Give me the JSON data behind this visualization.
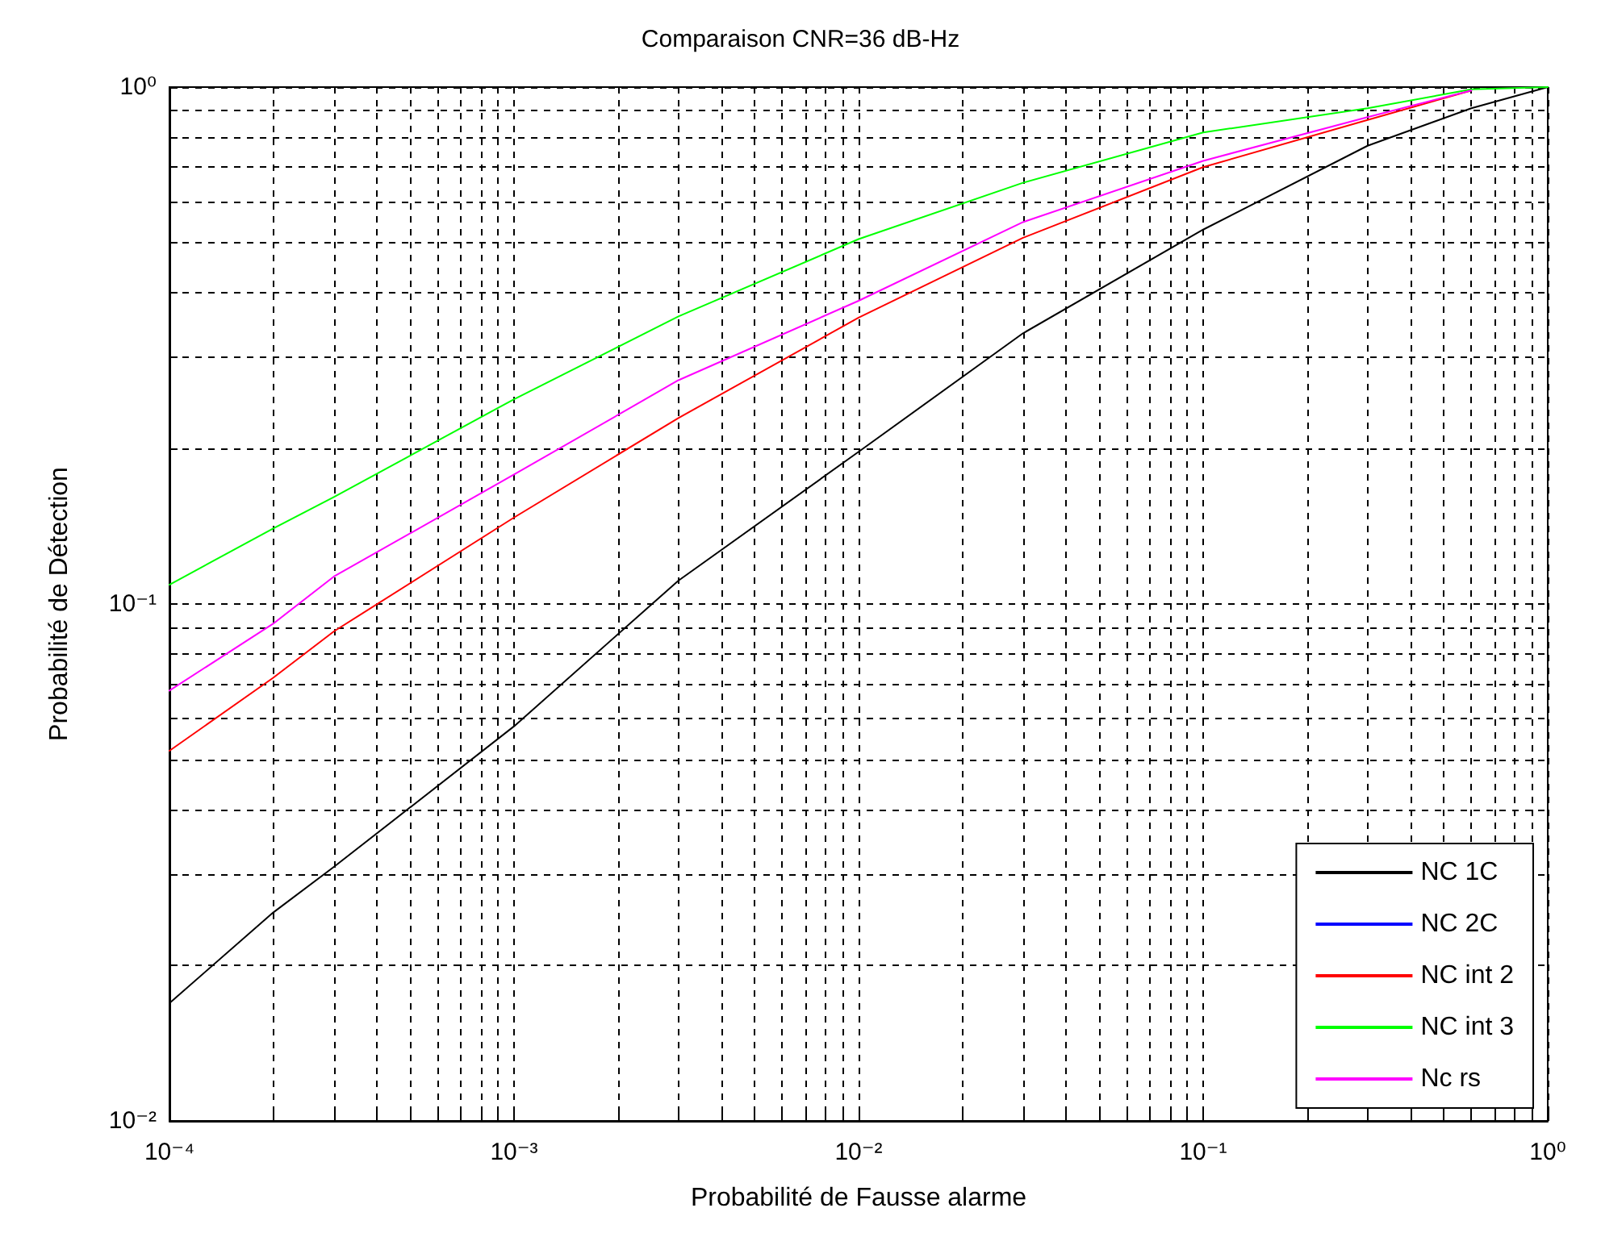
{
  "chart_data": {
    "type": "line",
    "title": "Comparaison CNR=36 dB-Hz",
    "xlabel": "Probabilité de Fausse alarme",
    "ylabel": "Probabilité de Détection",
    "x": [
      0.0001,
      0.0002,
      0.0003,
      0.001,
      0.003,
      0.01,
      0.03,
      0.1,
      0.3,
      0.6,
      1
    ],
    "series": [
      {
        "name": "NC 1C",
        "color": "#000000",
        "values": [
          0.0169,
          0.0253,
          0.031,
          0.058,
          0.111,
          0.197,
          0.334,
          0.53,
          0.77,
          0.91,
          1
        ]
      },
      {
        "name": "NC 2C",
        "color": "#0000ff",
        "values": [
          null,
          null,
          null,
          null,
          null,
          null,
          null,
          null,
          null,
          null,
          null
        ]
      },
      {
        "name": "NC int 2",
        "color": "#ff0000",
        "values": [
          0.052,
          0.072,
          0.0885,
          0.147,
          0.229,
          0.358,
          0.511,
          0.7,
          0.864,
          0.985,
          null
        ]
      },
      {
        "name": "NC int 3",
        "color": "#00ff00",
        "values": [
          0.109,
          0.14,
          0.161,
          0.249,
          0.36,
          0.508,
          0.653,
          0.817,
          0.91,
          0.99,
          1
        ]
      },
      {
        "name": "Nc rs",
        "color": "#ff00ff",
        "values": [
          0.068,
          0.0916,
          0.113,
          0.178,
          0.271,
          0.386,
          0.548,
          0.72,
          0.875,
          0.985,
          null
        ]
      }
    ],
    "log": "xy",
    "xlim": [
      0.0001,
      1
    ],
    "ylim": [
      0.01,
      1
    ],
    "xticks": [
      {
        "value": 0.0001,
        "label": "10⁻⁴"
      },
      {
        "value": 0.0002,
        "label": null
      },
      {
        "value": 0.0003,
        "label": null
      },
      {
        "value": 0.0004,
        "label": null
      },
      {
        "value": 0.0005,
        "label": null
      },
      {
        "value": 0.0006,
        "label": null
      },
      {
        "value": 0.0007,
        "label": null
      },
      {
        "value": 0.0008,
        "label": null
      },
      {
        "value": 0.0009,
        "label": null
      },
      {
        "value": 0.001,
        "label": "10⁻³"
      },
      {
        "value": 0.002,
        "label": null
      },
      {
        "value": 0.003,
        "label": null
      },
      {
        "value": 0.004,
        "label": null
      },
      {
        "value": 0.005,
        "label": null
      },
      {
        "value": 0.006,
        "label": null
      },
      {
        "value": 0.007,
        "label": null
      },
      {
        "value": 0.008,
        "label": null
      },
      {
        "value": 0.009,
        "label": null
      },
      {
        "value": 0.01,
        "label": "10⁻²"
      },
      {
        "value": 0.02,
        "label": null
      },
      {
        "value": 0.03,
        "label": null
      },
      {
        "value": 0.04,
        "label": null
      },
      {
        "value": 0.05,
        "label": null
      },
      {
        "value": 0.06,
        "label": null
      },
      {
        "value": 0.07,
        "label": null
      },
      {
        "value": 0.08,
        "label": null
      },
      {
        "value": 0.09,
        "label": null
      },
      {
        "value": 0.1,
        "label": "10⁻¹"
      },
      {
        "value": 0.2,
        "label": null
      },
      {
        "value": 0.3,
        "label": null
      },
      {
        "value": 0.4,
        "label": null
      },
      {
        "value": 0.5,
        "label": null
      },
      {
        "value": 0.6,
        "label": null
      },
      {
        "value": 0.7,
        "label": null
      },
      {
        "value": 0.8,
        "label": null
      },
      {
        "value": 0.9,
        "label": null
      },
      {
        "value": 1,
        "label": "10⁰"
      }
    ],
    "yticks": [
      {
        "value": 0.01,
        "label": "10⁻²"
      },
      {
        "value": 0.02,
        "label": null
      },
      {
        "value": 0.03,
        "label": null
      },
      {
        "value": 0.04,
        "label": null
      },
      {
        "value": 0.05,
        "label": null
      },
      {
        "value": 0.06,
        "label": null
      },
      {
        "value": 0.07,
        "label": null
      },
      {
        "value": 0.08,
        "label": null
      },
      {
        "value": 0.09,
        "label": null
      },
      {
        "value": 0.1,
        "label": "10⁻¹"
      },
      {
        "value": 0.2,
        "label": null
      },
      {
        "value": 0.3,
        "label": null
      },
      {
        "value": 0.4,
        "label": null
      },
      {
        "value": 0.5,
        "label": null
      },
      {
        "value": 0.6,
        "label": null
      },
      {
        "value": 0.7,
        "label": null
      },
      {
        "value": 0.8,
        "label": null
      },
      {
        "value": 0.9,
        "label": null
      },
      {
        "value": 1,
        "label": "10⁰"
      }
    ],
    "grid": true,
    "legend": "bottom right",
    "marker": "none",
    "line_style": "solid"
  }
}
